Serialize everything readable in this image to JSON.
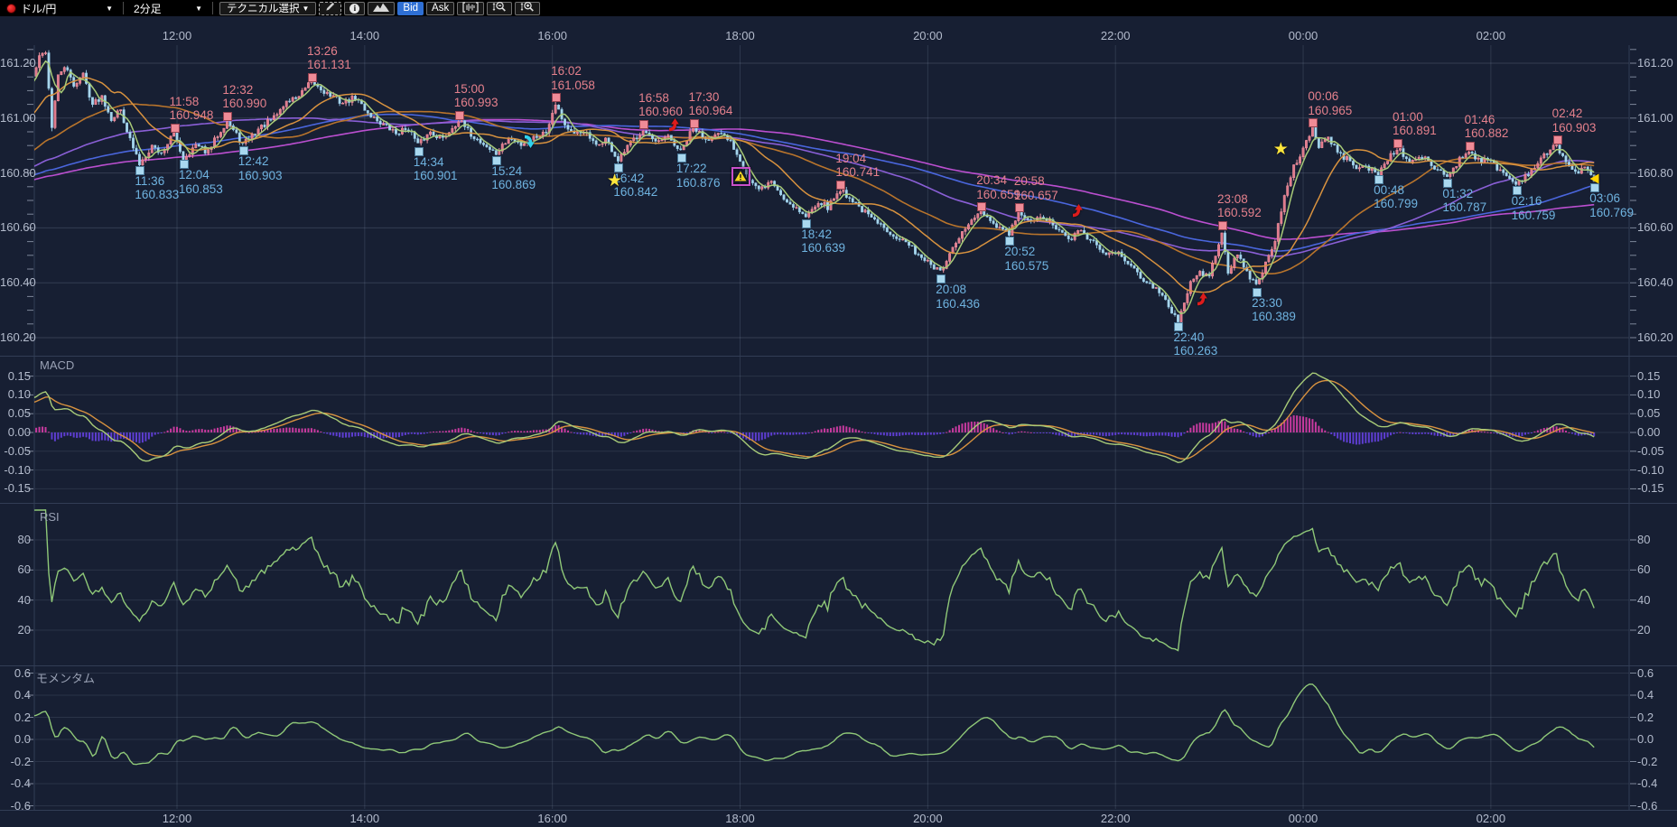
{
  "toolbar": {
    "symbol": "ドル/円",
    "timeframe": "2分足",
    "technical": "テクニカル選択",
    "bid": "Bid",
    "ask": "Ask"
  },
  "panels": {
    "macd": {
      "title": "MACD",
      "labels": [
        "0.15",
        "0.10",
        "0.05",
        "0.00",
        "-0.05",
        "-0.10",
        "-0.15"
      ]
    },
    "rsi": {
      "title": "RSI",
      "labels": [
        "80",
        "60",
        "40",
        "20"
      ]
    },
    "momentum": {
      "title": "モメンタム",
      "labels": [
        "0.6",
        "0.4",
        "0.2",
        "0.0",
        "-0.2",
        "-0.4",
        "-0.6"
      ]
    }
  },
  "axes": {
    "time": [
      "12:00",
      "14:00",
      "16:00",
      "18:00",
      "20:00",
      "22:00",
      "00:00",
      "02:00"
    ],
    "price": [
      "161.20",
      "161.00",
      "160.80",
      "160.60",
      "160.40",
      "160.20"
    ]
  },
  "chart_data": {
    "type": "candlestick",
    "symbol": "ドル/円",
    "interval": "2分足",
    "quote": "Bid",
    "y_range": [
      160.2,
      161.2
    ],
    "macd_range": [
      -0.15,
      0.15
    ],
    "rsi_range": [
      20,
      80
    ],
    "momentum_range": [
      -0.6,
      0.6
    ],
    "indicators": [
      "MACD",
      "RSI",
      "モメンタム"
    ],
    "price_path": [
      [
        "10:28",
        161.15
      ],
      [
        "10:32",
        161.22
      ],
      [
        "10:36",
        161.245
      ],
      [
        "10:40",
        160.97
      ],
      [
        "10:44",
        161.15
      ],
      [
        "10:48",
        161.19
      ],
      [
        "10:54",
        161.12
      ],
      [
        "11:00",
        161.16
      ],
      [
        "11:06",
        161.05
      ],
      [
        "11:12",
        161.08
      ],
      [
        "11:18",
        161.0
      ],
      [
        "11:24",
        161.03
      ],
      [
        "11:30",
        160.92
      ],
      [
        "11:36",
        160.833
      ],
      [
        "11:44",
        160.9
      ],
      [
        "11:50",
        160.87
      ],
      [
        "11:58",
        160.948
      ],
      [
        "12:04",
        160.853
      ],
      [
        "12:12",
        160.9
      ],
      [
        "12:20",
        160.875
      ],
      [
        "12:26",
        160.94
      ],
      [
        "12:32",
        160.99
      ],
      [
        "12:42",
        160.903
      ],
      [
        "12:52",
        160.96
      ],
      [
        "13:02",
        161.0
      ],
      [
        "13:10",
        161.06
      ],
      [
        "13:18",
        161.08
      ],
      [
        "13:26",
        161.131
      ],
      [
        "13:36",
        161.09
      ],
      [
        "13:46",
        161.055
      ],
      [
        "13:54",
        161.075
      ],
      [
        "14:02",
        161.02
      ],
      [
        "14:12",
        160.975
      ],
      [
        "14:20",
        160.945
      ],
      [
        "14:28",
        160.965
      ],
      [
        "14:34",
        160.901
      ],
      [
        "14:42",
        160.95
      ],
      [
        "14:50",
        160.925
      ],
      [
        "15:00",
        160.993
      ],
      [
        "15:08",
        160.94
      ],
      [
        "15:16",
        160.905
      ],
      [
        "15:24",
        160.869
      ],
      [
        "15:32",
        160.925
      ],
      [
        "15:40",
        160.905
      ],
      [
        "15:48",
        160.93
      ],
      [
        "15:56",
        160.95
      ],
      [
        "16:02",
        161.058
      ],
      [
        "16:08",
        160.975
      ],
      [
        "16:14",
        160.935
      ],
      [
        "16:20",
        160.955
      ],
      [
        "16:28",
        160.895
      ],
      [
        "16:34",
        160.925
      ],
      [
        "16:42",
        160.842
      ],
      [
        "16:50",
        160.91
      ],
      [
        "16:58",
        160.96
      ],
      [
        "17:06",
        160.905
      ],
      [
        "17:14",
        160.93
      ],
      [
        "17:22",
        160.876
      ],
      [
        "17:30",
        160.964
      ],
      [
        "17:38",
        160.925
      ],
      [
        "17:46",
        160.94
      ],
      [
        "17:54",
        160.915
      ],
      [
        "18:00",
        160.85
      ],
      [
        "18:06",
        160.775
      ],
      [
        "18:12",
        160.735
      ],
      [
        "18:20",
        160.77
      ],
      [
        "18:28",
        160.705
      ],
      [
        "18:36",
        160.675
      ],
      [
        "18:42",
        160.639
      ],
      [
        "18:50",
        160.7
      ],
      [
        "18:56",
        160.675
      ],
      [
        "19:04",
        160.741
      ],
      [
        "19:12",
        160.7
      ],
      [
        "19:20",
        160.655
      ],
      [
        "19:28",
        160.615
      ],
      [
        "19:36",
        160.585
      ],
      [
        "19:44",
        160.555
      ],
      [
        "19:52",
        160.515
      ],
      [
        "20:00",
        160.475
      ],
      [
        "20:08",
        160.436
      ],
      [
        "20:16",
        160.52
      ],
      [
        "20:24",
        160.6
      ],
      [
        "20:34",
        160.659
      ],
      [
        "20:40",
        160.615
      ],
      [
        "20:46",
        160.6
      ],
      [
        "20:52",
        160.575
      ],
      [
        "20:58",
        160.657
      ],
      [
        "21:06",
        160.62
      ],
      [
        "21:14",
        160.64
      ],
      [
        "21:22",
        160.6
      ],
      [
        "21:30",
        160.555
      ],
      [
        "21:38",
        160.59
      ],
      [
        "21:46",
        160.545
      ],
      [
        "21:54",
        160.5
      ],
      [
        "22:02",
        160.52
      ],
      [
        "22:10",
        160.455
      ],
      [
        "22:18",
        160.415
      ],
      [
        "22:26",
        160.375
      ],
      [
        "22:34",
        160.315
      ],
      [
        "22:40",
        160.263
      ],
      [
        "22:48",
        160.4
      ],
      [
        "22:54",
        160.44
      ],
      [
        "23:00",
        160.42
      ],
      [
        "23:08",
        160.592
      ],
      [
        "23:12",
        160.44
      ],
      [
        "23:18",
        160.5
      ],
      [
        "23:24",
        160.44
      ],
      [
        "23:30",
        160.389
      ],
      [
        "23:36",
        160.47
      ],
      [
        "23:42",
        160.56
      ],
      [
        "23:48",
        160.71
      ],
      [
        "23:54",
        160.82
      ],
      [
        "00:00",
        160.89
      ],
      [
        "00:06",
        160.965
      ],
      [
        "00:10",
        160.9
      ],
      [
        "00:16",
        160.93
      ],
      [
        "00:22",
        160.875
      ],
      [
        "00:28",
        160.85
      ],
      [
        "00:34",
        160.825
      ],
      [
        "00:40",
        160.82
      ],
      [
        "00:48",
        160.799
      ],
      [
        "00:54",
        160.85
      ],
      [
        "01:00",
        160.891
      ],
      [
        "01:08",
        160.84
      ],
      [
        "01:16",
        160.858
      ],
      [
        "01:24",
        160.82
      ],
      [
        "01:32",
        160.787
      ],
      [
        "01:40",
        160.85
      ],
      [
        "01:46",
        160.882
      ],
      [
        "01:52",
        160.85
      ],
      [
        "02:00",
        160.84
      ],
      [
        "02:08",
        160.8
      ],
      [
        "02:16",
        160.759
      ],
      [
        "02:24",
        160.8
      ],
      [
        "02:32",
        160.85
      ],
      [
        "02:42",
        160.903
      ],
      [
        "02:48",
        160.84
      ],
      [
        "02:54",
        160.8
      ],
      [
        "03:00",
        160.82
      ],
      [
        "03:06",
        160.769
      ]
    ],
    "highs": [
      [
        "11:58",
        "160.948"
      ],
      [
        "12:32",
        "160.990"
      ],
      [
        "13:26",
        "161.131"
      ],
      [
        "15:00",
        "160.993"
      ],
      [
        "16:02",
        "161.058"
      ],
      [
        "16:58",
        "160.960"
      ],
      [
        "17:30",
        "160.964"
      ],
      [
        "19:04",
        "160.741"
      ],
      [
        "20:34",
        "160.659"
      ],
      [
        "20:58",
        "160.657"
      ],
      [
        "23:08",
        "160.592"
      ],
      [
        "00:06",
        "160.965"
      ],
      [
        "01:00",
        "160.891"
      ],
      [
        "01:46",
        "160.882"
      ],
      [
        "02:42",
        "160.903"
      ]
    ],
    "lows": [
      [
        "11:36",
        "160.833"
      ],
      [
        "12:04",
        "160.853"
      ],
      [
        "12:42",
        "160.903"
      ],
      [
        "14:34",
        "160.901"
      ],
      [
        "15:24",
        "160.869"
      ],
      [
        "16:42",
        "160.842"
      ],
      [
        "17:22",
        "160.876"
      ],
      [
        "18:42",
        "160.639"
      ],
      [
        "20:08",
        "160.436"
      ],
      [
        "20:52",
        "160.575"
      ],
      [
        "22:40",
        "160.263"
      ],
      [
        "23:30",
        "160.389"
      ],
      [
        "00:48",
        "160.799"
      ],
      [
        "01:32",
        "160.787"
      ],
      [
        "02:16",
        "160.759"
      ],
      [
        "03:06",
        "160.769"
      ]
    ],
    "icons": [
      {
        "name": "sell-arrow-icon",
        "type": "arrow-down",
        "time": "15:46",
        "price": 160.915
      },
      {
        "name": "star-icon",
        "type": "star",
        "time": "16:40",
        "price": 160.768
      },
      {
        "name": "buy-arrow-icon",
        "type": "arrow-up",
        "time": "17:18",
        "price": 160.975
      },
      {
        "name": "alert-icon",
        "type": "warning",
        "time": "18:00",
        "price": 160.79
      },
      {
        "name": "buy-arrow-icon",
        "type": "arrow-up",
        "time": "21:36",
        "price": 160.665
      },
      {
        "name": "buy-arrow-icon",
        "type": "arrow-up",
        "time": "22:56",
        "price": 160.34
      },
      {
        "name": "star-icon",
        "type": "star",
        "time": "23:46",
        "price": 160.885
      },
      {
        "name": "last-price-arrow-icon",
        "type": "pointer",
        "time": "03:04",
        "price": 160.79
      }
    ]
  },
  "colors": {
    "bg": "#171f33",
    "toolbar_bg": "#000000",
    "up": "#e0798b",
    "up_stroke": "#f096a3",
    "down": "#a9d6ec",
    "down_stroke": "#8fc4e2",
    "ma_fast": "#a8cb78",
    "ma_mid": "#d8923f",
    "ma_slow1": "#b8742c",
    "ma_slow2": "#8a5fd6",
    "ma_slow3": "#4a66dd",
    "ma_slow4": "#bb4fd0",
    "macd_line": "#a8cb78",
    "macd_signal": "#d8923f",
    "macd_pos": "#c73a9f",
    "macd_neg": "#5e3ed2",
    "rsi_line": "#8fc878",
    "momentum_line": "#8fc878",
    "high_label": "#e4808c",
    "low_label": "#6fb3e0",
    "bid_active": "#2e6fd4",
    "grid": "#aabcd6",
    "axis_text": "#b4bccd",
    "star": "#ffe63c",
    "warning": "#f5d521",
    "buy_arrow": "#dd1c1c",
    "sell_arrow": "#2fd2ee",
    "pointer": "#ffd400"
  }
}
